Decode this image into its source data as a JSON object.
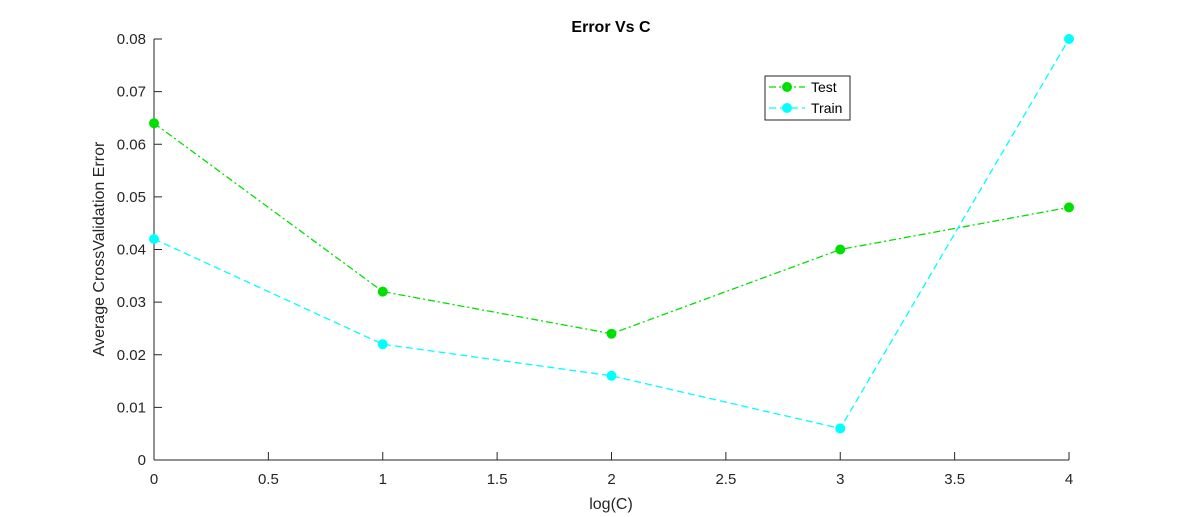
{
  "chart_data": {
    "type": "line",
    "title": "Error Vs C",
    "xlabel": "log(C)",
    "ylabel": "Average CrossValidation Error",
    "xlim": [
      0,
      4
    ],
    "ylim": [
      0,
      0.08
    ],
    "xticks": [
      "0",
      "0.5",
      "1",
      "1.5",
      "2",
      "2.5",
      "3",
      "3.5",
      "4"
    ],
    "yticks": [
      "0",
      "0.01",
      "0.02",
      "0.03",
      "0.04",
      "0.05",
      "0.06",
      "0.07",
      "0.08"
    ],
    "x": [
      0,
      1,
      2,
      3,
      4
    ],
    "grid": false,
    "legend_position": "top-right",
    "series": [
      {
        "name": "Test",
        "values": [
          0.064,
          0.032,
          0.024,
          0.04,
          0.048
        ],
        "color": "#00e000",
        "line_style": "dash-dot",
        "marker": "circle"
      },
      {
        "name": "Train",
        "values": [
          0.042,
          0.022,
          0.016,
          0.006,
          0.08
        ],
        "color": "#00ffff",
        "line_style": "dashed",
        "marker": "circle"
      }
    ]
  }
}
